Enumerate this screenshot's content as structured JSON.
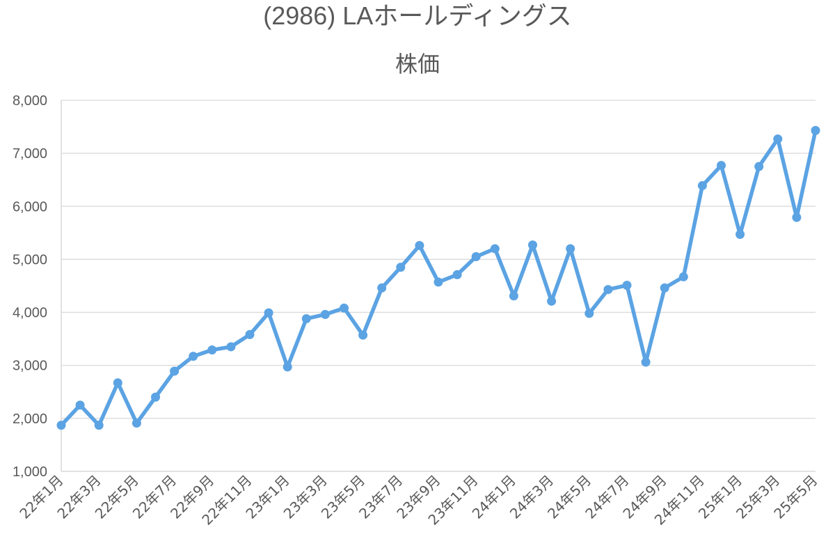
{
  "chart_data": {
    "type": "line",
    "title": "(2986) LAホールディングス",
    "subtitle": "株価",
    "xlabel": "",
    "ylabel": "",
    "ylim": [
      1000,
      8000
    ],
    "yticks": [
      1000,
      2000,
      3000,
      4000,
      5000,
      6000,
      7000,
      8000
    ],
    "ytick_labels": [
      "1,000",
      "2,000",
      "3,000",
      "4,000",
      "5,000",
      "6,000",
      "7,000",
      "8,000"
    ],
    "grid": true,
    "legend": "none",
    "x": [
      "22年1月",
      "22年2月",
      "22年3月",
      "22年4月",
      "22年5月",
      "22年6月",
      "22年7月",
      "22年8月",
      "22年9月",
      "22年10月",
      "22年11月",
      "22年12月",
      "23年1月",
      "23年2月",
      "23年3月",
      "23年4月",
      "23年5月",
      "23年6月",
      "23年7月",
      "23年8月",
      "23年9月",
      "23年10月",
      "23年11月",
      "23年12月",
      "24年1月",
      "24年2月",
      "24年3月",
      "24年4月",
      "24年5月",
      "24年6月",
      "24年7月",
      "24年8月",
      "24年9月",
      "24年10月",
      "24年11月",
      "24年12月",
      "25年1月",
      "25年2月",
      "25年3月",
      "25年4月",
      "25年5月"
    ],
    "xtick_labels": [
      "22年1月",
      "22年3月",
      "22年5月",
      "22年7月",
      "22年9月",
      "22年11月",
      "23年1月",
      "23年3月",
      "23年5月",
      "23年7月",
      "23年9月",
      "23年11月",
      "24年1月",
      "24年3月",
      "24年5月",
      "24年7月",
      "24年9月",
      "24年11月",
      "25年1月",
      "25年3月",
      "25年5月"
    ],
    "series": [
      {
        "color": "#5BA3E3",
        "values": [
          1870,
          2250,
          1870,
          2670,
          1910,
          2400,
          2890,
          3170,
          3290,
          3350,
          3580,
          3990,
          2970,
          3880,
          3960,
          4080,
          3570,
          4460,
          4850,
          5260,
          4570,
          4710,
          5050,
          5200,
          4310,
          5270,
          4210,
          5200,
          3980,
          4430,
          4510,
          3060,
          4460,
          4670,
          6390,
          6770,
          5470,
          6750,
          7270,
          5790,
          7430
        ]
      }
    ]
  }
}
